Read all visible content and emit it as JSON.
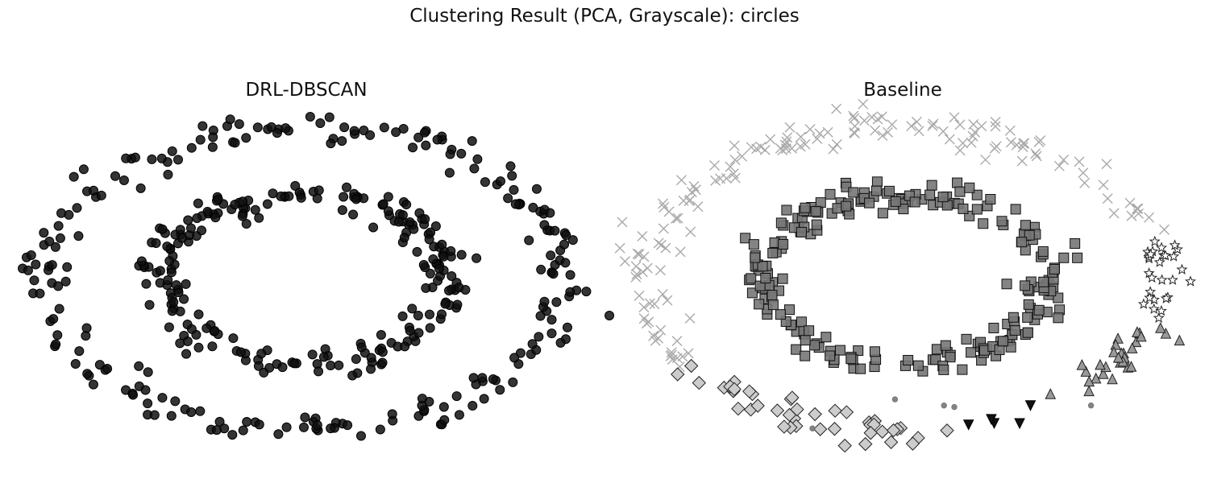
{
  "figure": {
    "title": "Clustering Result (PCA, Grayscale): circles"
  },
  "chart_data": [
    {
      "type": "scatter",
      "title": "DRL-DBSCAN",
      "grid": false,
      "axes_visible": false,
      "xlim": [
        -1.15,
        1.15
      ],
      "ylim": [
        -1.15,
        1.15
      ],
      "series": [
        {
          "marker": "circle",
          "fill": "#111111",
          "edge": "#000000",
          "opacity": 0.85,
          "points": []
        }
      ],
      "generator": {
        "outer_count": 230,
        "inner_count": 230,
        "outer_radius": 1.0,
        "inner_radius": 0.55,
        "noise": 0.05
      }
    },
    {
      "type": "scatter",
      "title": "Baseline",
      "grid": false,
      "axes_visible": false,
      "xlim": [
        -1.15,
        1.15
      ],
      "ylim": [
        -1.15,
        1.15
      ],
      "series": [
        {
          "marker": "square",
          "fill": "#777777",
          "edge": "#111111",
          "opacity": 0.9,
          "arc": "inner"
        },
        {
          "marker": "x",
          "fill": "#aaaaaa",
          "edge": "#aaaaaa",
          "opacity": 1.0,
          "arc": "outer-top-left"
        },
        {
          "marker": "star",
          "fill": "#ffffff",
          "edge": "#222222",
          "opacity": 1.0,
          "arc": "outer-right"
        },
        {
          "marker": "triangle-up",
          "fill": "#999999",
          "edge": "#222222",
          "opacity": 1.0,
          "arc": "outer-bottom-right"
        },
        {
          "marker": "diamond",
          "fill": "#cccccc",
          "edge": "#222222",
          "opacity": 1.0,
          "arc": "outer-bottom-left"
        },
        {
          "marker": "triangle-down",
          "fill": "#111111",
          "edge": "#000000",
          "opacity": 1.0,
          "arc": "outer-bottom-mid"
        },
        {
          "marker": "dot",
          "fill": "#777777",
          "edge": "#777777",
          "opacity": 0.9,
          "arc": "noise"
        }
      ]
    }
  ]
}
